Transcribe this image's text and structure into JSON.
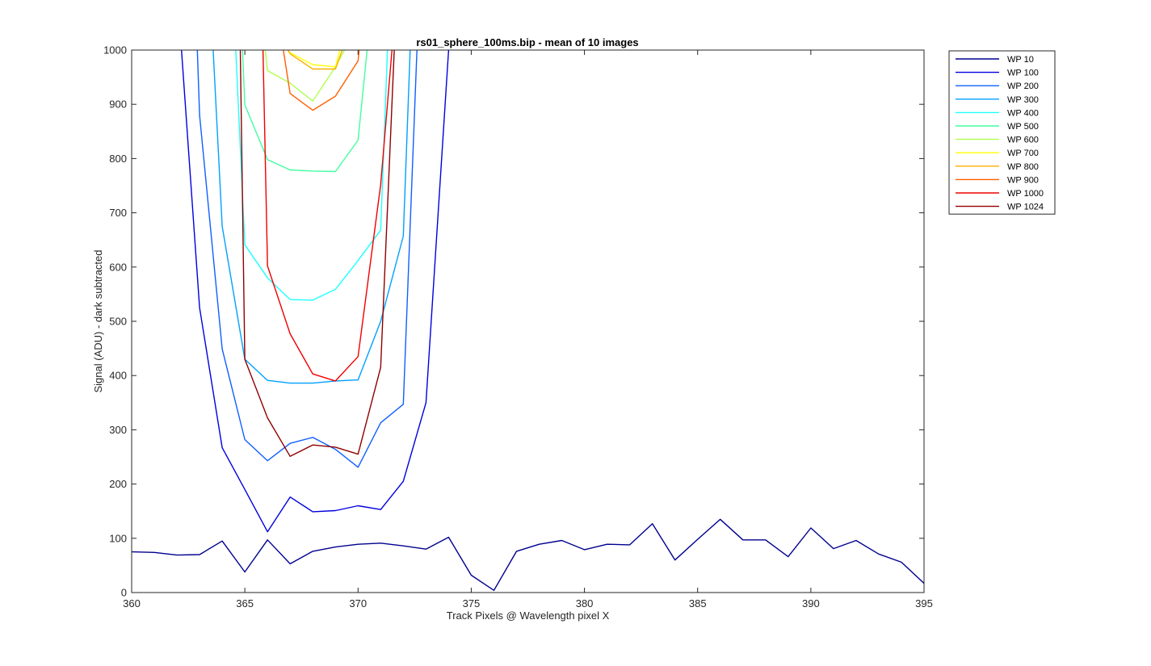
{
  "chart_data": {
    "type": "line",
    "title": "rs01_sphere_100ms.bip - mean of 10 images",
    "xlabel": "Track Pixels @ Wavelength pixel X",
    "ylabel": "Signal (ADU) - dark subtracted",
    "xlim": [
      360,
      395
    ],
    "ylim": [
      0,
      1000
    ],
    "xticks": [
      360,
      365,
      370,
      375,
      380,
      385,
      390,
      395
    ],
    "yticks": [
      0,
      100,
      200,
      300,
      400,
      500,
      600,
      700,
      800,
      900,
      1000
    ],
    "xtick_labels": [
      "360",
      "365",
      "370",
      "375",
      "380",
      "385",
      "390",
      "395"
    ],
    "ytick_labels": [
      "0",
      "100",
      "200",
      "300",
      "400",
      "500",
      "600",
      "700",
      "800",
      "900",
      "1000"
    ],
    "grid": false,
    "legend_position": "outside-top-right",
    "series": [
      {
        "name": "WP 10",
        "color": "#00008f",
        "x": [
          360,
          361,
          362,
          363,
          364,
          365,
          366,
          367,
          368,
          369,
          370,
          371,
          372,
          373,
          374,
          375,
          376,
          377,
          378,
          379,
          380,
          381,
          382,
          383,
          384,
          385,
          386,
          387,
          388,
          389,
          390,
          391,
          392,
          393,
          394,
          395
        ],
        "values": [
          75,
          74,
          69,
          70,
          95,
          38,
          97,
          53,
          76,
          84,
          89,
          91,
          86,
          80,
          102,
          32,
          4,
          76,
          89,
          96,
          79,
          89,
          88,
          127,
          60,
          98,
          135,
          97,
          97,
          66,
          119,
          81,
          96,
          71,
          56,
          17
        ]
      },
      {
        "name": "WP 100",
        "color": "#0000df",
        "x": [
          362.2,
          363,
          364,
          365,
          366,
          367,
          368,
          369,
          370,
          371,
          372,
          373,
          374
        ],
        "values": [
          1000,
          525,
          267,
          190,
          112,
          176,
          149,
          151,
          160,
          153,
          205,
          350,
          1000
        ]
      },
      {
        "name": "WP 200",
        "color": "#0f5fff",
        "x": [
          362.9,
          363,
          364,
          365,
          366,
          367,
          368,
          369,
          370,
          371,
          372,
          372.6
        ],
        "values": [
          1000,
          880,
          449,
          282,
          243,
          275,
          286,
          264,
          231,
          313,
          347,
          1000
        ]
      },
      {
        "name": "WP 300",
        "color": "#00a0ff",
        "x": [
          363.6,
          364,
          365,
          366,
          367,
          368,
          369,
          370,
          371,
          372,
          372.3
        ],
        "values": [
          1000,
          675,
          430,
          391,
          386,
          386,
          390,
          392,
          500,
          657,
          1000
        ]
      },
      {
        "name": "WP 400",
        "color": "#1fffff",
        "x": [
          364.6,
          365,
          366,
          367,
          368,
          369,
          370,
          371,
          371.3
        ],
        "values": [
          1000,
          641,
          580,
          540,
          539,
          559,
          612,
          668,
          1000
        ]
      },
      {
        "name": "WP 500",
        "color": "#40ff9f",
        "x": [
          364.9,
          365,
          366,
          367,
          368,
          369,
          370,
          370.4
        ],
        "values": [
          1000,
          899,
          798,
          779,
          777,
          776,
          834,
          1000
        ]
      },
      {
        "name": "WP 600",
        "color": "#afff4f",
        "x": [
          365.9,
          366,
          367,
          368,
          369,
          369.4
        ],
        "values": [
          1000,
          962,
          939,
          906,
          969,
          1000
        ]
      },
      {
        "name": "WP 700",
        "color": "#ffff00",
        "x": [
          366.9,
          367,
          368,
          369,
          369.2
        ],
        "values": [
          1000,
          995,
          973,
          969,
          1000
        ]
      },
      {
        "name": "WP 800",
        "color": "#ffaf00",
        "x": [
          366.9,
          367,
          368,
          369,
          369.3
        ],
        "values": [
          1000,
          993,
          965,
          965,
          1000
        ]
      },
      {
        "name": "WP 900",
        "color": "#ff5f00",
        "x": [
          366.7,
          367,
          368,
          369,
          370,
          370.05
        ],
        "values": [
          1000,
          920,
          889,
          915,
          980,
          1000
        ]
      },
      {
        "name": "WP 1000",
        "color": "#ef0000",
        "x": [
          365.8,
          366,
          367,
          368,
          369,
          370,
          371,
          371.5
        ],
        "values": [
          1000,
          602,
          477,
          403,
          390,
          435,
          752,
          1000
        ]
      },
      {
        "name": "WP 1024",
        "color": "#8f0000",
        "x": [
          364.8,
          365,
          366,
          367,
          368,
          369,
          370,
          371,
          371.6
        ],
        "values": [
          1000,
          430,
          322,
          251,
          272,
          268,
          255,
          415,
          1000
        ]
      }
    ]
  }
}
